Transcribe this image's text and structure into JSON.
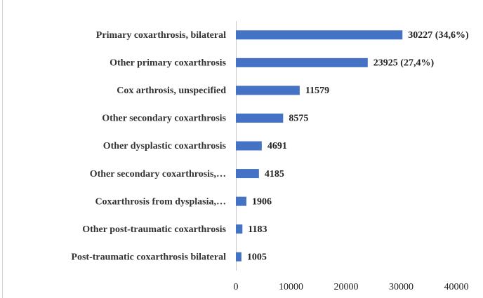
{
  "chart_data": {
    "type": "bar",
    "orientation": "horizontal",
    "categories": [
      "Primary coxarthrosis, bilateral",
      "Other primary coxarthrosis",
      "Cox arthrosis, unspecified",
      "Other secondary coxarthrosis",
      "Other dysplastic coxarthrosis",
      "Other secondary coxarthrosis,…",
      "Coxarthrosis from dysplasia,…",
      "Other post-traumatic coxarthrosis",
      "Post-traumatic coxarthrosis bilateral"
    ],
    "values": [
      30227,
      23925,
      11579,
      8575,
      4691,
      4185,
      1906,
      1183,
      1005
    ],
    "value_labels": [
      "30227 (34,6%)",
      "23925 (27,4%)",
      "11579",
      "8575",
      "4691",
      "4185",
      "1906",
      "1183",
      "1005"
    ],
    "color": "#4472c4",
    "xlim": [
      0,
      40000
    ],
    "xticks": [
      0,
      10000,
      20000,
      30000,
      40000
    ],
    "grid": false
  }
}
